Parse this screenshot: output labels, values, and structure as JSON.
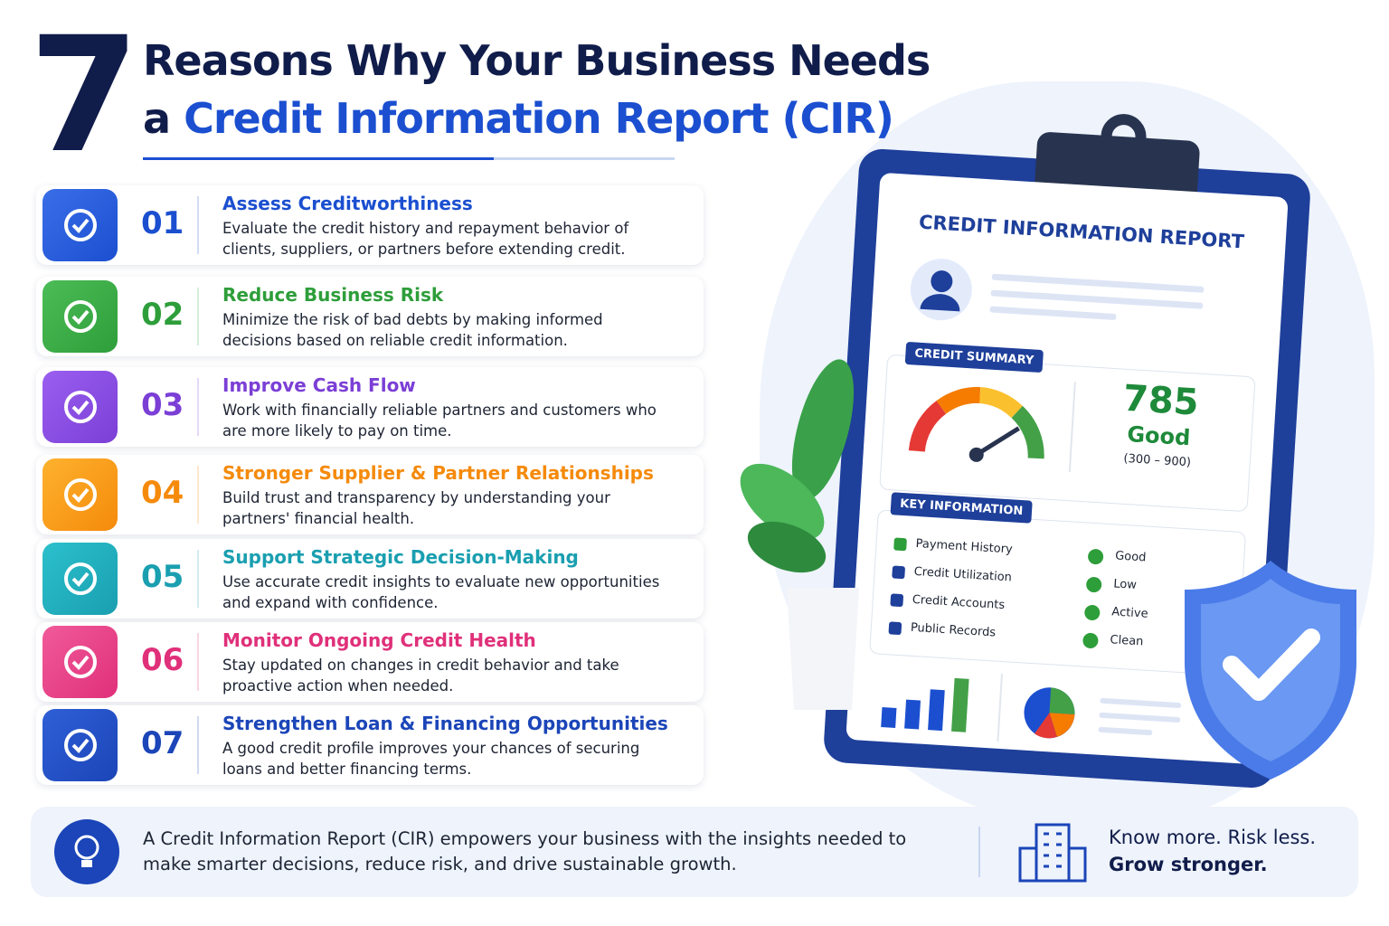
{
  "header": {
    "number": "7",
    "title_line1": "Reasons Why Your Business Needs",
    "title_line2_prefix": "a",
    "title_line2_highlight": "Credit Information Report (CIR)"
  },
  "reasons": [
    {
      "number": "01",
      "title": "Assess Creditworthiness",
      "description": "Evaluate the credit history and repayment behavior of clients, suppliers, or partners before extending credit."
    },
    {
      "number": "02",
      "title": "Reduce Business Risk",
      "description": "Minimize the risk of bad debts by making informed decisions based on reliable credit information."
    },
    {
      "number": "03",
      "title": "Improve Cash Flow",
      "description": "Work with financially reliable partners and customers who are more likely to pay on time."
    },
    {
      "number": "04",
      "title": "Stronger Supplier & Partner Relationships",
      "description": "Build trust and transparency by understanding your partners' financial health."
    },
    {
      "number": "05",
      "title": "Support Strategic Decision-Making",
      "description": "Use accurate credit insights to evaluate new opportunities and expand with confidence."
    },
    {
      "number": "06",
      "title": "Monitor Ongoing Credit Health",
      "description": "Stay updated on changes in credit behavior and take proactive action when needed."
    },
    {
      "number": "07",
      "title": "Strengthen Loan & Financing Opportunities",
      "description": "A good credit profile improves your chances of securing loans and better financing terms."
    }
  ],
  "report": {
    "title": "CREDIT INFORMATION REPORT",
    "summary_label": "CREDIT SUMMARY",
    "score": "785",
    "rating": "Good",
    "range": "(300 – 900)",
    "key_info_label": "KEY INFORMATION",
    "items": [
      {
        "label": "Payment History",
        "status": "Good"
      },
      {
        "label": "Credit Utilization",
        "status": "Low"
      },
      {
        "label": "Credit Accounts",
        "status": "Active"
      },
      {
        "label": "Public Records",
        "status": "Clean"
      }
    ]
  },
  "footer": {
    "text": "A Credit Information Report (CIR) empowers your business with the insights needed to make smarter decisions, reduce risk, and drive sustainable growth.",
    "slogan_line1": "Know more. Risk less.",
    "slogan_line2": "Grow stronger."
  }
}
